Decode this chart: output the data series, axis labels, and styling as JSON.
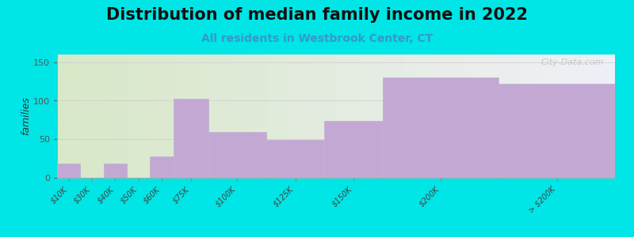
{
  "title": "Distribution of median family income in 2022",
  "subtitle": "All residents in Westbrook Center, CT",
  "categories": [
    "$10K",
    "$30K",
    "$40K",
    "$50K",
    "$60K",
    "$75K",
    "$100K",
    "$125K",
    "$150K",
    "$200K",
    "> $200K"
  ],
  "values": [
    18,
    0,
    18,
    0,
    28,
    103,
    60,
    49,
    74,
    130,
    122
  ],
  "bar_widths": [
    10,
    10,
    10,
    10,
    10,
    15,
    25,
    25,
    25,
    50,
    50
  ],
  "bar_lefts": [
    0,
    10,
    20,
    30,
    40,
    50,
    65,
    90,
    115,
    140,
    190
  ],
  "xtick_positions": [
    5,
    15,
    25,
    35,
    45,
    57.5,
    77.5,
    102.5,
    127.5,
    165,
    215
  ],
  "bar_color": "#c4a8d4",
  "bar_edge_color": "#c0b0d0",
  "background_color": "#00e5e5",
  "plot_bg_left": "#d8e8c8",
  "plot_bg_right": "#f0f0f8",
  "ylabel": "families",
  "ylim": [
    0,
    160
  ],
  "yticks": [
    0,
    50,
    100,
    150
  ],
  "xlim": [
    0,
    240
  ],
  "title_fontsize": 15,
  "subtitle_fontsize": 10,
  "subtitle_color": "#3399cc",
  "ylabel_fontsize": 9,
  "tick_label_fontsize": 7,
  "watermark_text": "City-Data.com"
}
